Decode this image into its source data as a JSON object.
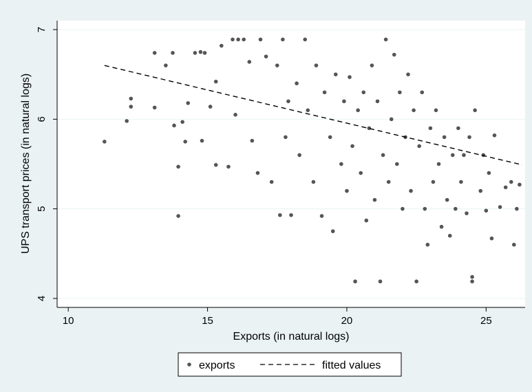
{
  "chart_data": {
    "type": "scatter",
    "xlabel": "Exports (in natural logs)",
    "ylabel": "UPS transport prices (in natural logs)",
    "xlim": [
      9.6,
      26.4
    ],
    "ylim": [
      3.9,
      7.1
    ],
    "xticks": [
      10,
      15,
      20,
      25
    ],
    "yticks": [
      4,
      5,
      6,
      7
    ],
    "grid": "horizontal",
    "legend_position": "bottom",
    "colors": {
      "points": "#555555",
      "line": "#000000",
      "background": "#eaf2f3",
      "plot_bg": "#ffffff",
      "grid": "#eaf2f3"
    },
    "series": [
      {
        "name": "exports",
        "kind": "scatter",
        "points": [
          [
            11.3,
            5.75
          ],
          [
            12.1,
            5.98
          ],
          [
            12.25,
            6.23
          ],
          [
            12.25,
            6.14
          ],
          [
            13.1,
            6.74
          ],
          [
            13.1,
            6.13
          ],
          [
            13.5,
            6.6
          ],
          [
            13.75,
            6.74
          ],
          [
            13.8,
            5.93
          ],
          [
            13.95,
            5.47
          ],
          [
            13.95,
            4.92
          ],
          [
            14.1,
            5.97
          ],
          [
            14.2,
            5.75
          ],
          [
            14.3,
            6.18
          ],
          [
            14.55,
            6.74
          ],
          [
            14.75,
            6.75
          ],
          [
            14.8,
            5.76
          ],
          [
            14.9,
            6.74
          ],
          [
            15.1,
            6.14
          ],
          [
            15.3,
            6.42
          ],
          [
            15.3,
            5.49
          ],
          [
            15.5,
            6.82
          ],
          [
            15.75,
            5.47
          ],
          [
            15.9,
            6.89
          ],
          [
            16.0,
            6.05
          ],
          [
            16.1,
            6.89
          ],
          [
            16.3,
            6.89
          ],
          [
            16.5,
            6.64
          ],
          [
            16.6,
            5.76
          ],
          [
            16.8,
            5.4
          ],
          [
            16.9,
            6.89
          ],
          [
            17.1,
            6.7
          ],
          [
            17.3,
            5.3
          ],
          [
            17.5,
            6.6
          ],
          [
            17.6,
            4.93
          ],
          [
            17.7,
            6.89
          ],
          [
            17.8,
            5.8
          ],
          [
            17.9,
            6.2
          ],
          [
            18.0,
            4.93
          ],
          [
            18.2,
            6.4
          ],
          [
            18.3,
            5.6
          ],
          [
            18.5,
            6.89
          ],
          [
            18.6,
            6.1
          ],
          [
            18.8,
            5.3
          ],
          [
            18.9,
            6.6
          ],
          [
            19.1,
            4.92
          ],
          [
            19.2,
            6.3
          ],
          [
            19.4,
            5.8
          ],
          [
            19.5,
            4.75
          ],
          [
            19.6,
            6.5
          ],
          [
            19.8,
            5.5
          ],
          [
            19.9,
            6.2
          ],
          [
            20.0,
            5.2
          ],
          [
            20.1,
            6.47
          ],
          [
            20.2,
            5.7
          ],
          [
            20.3,
            4.19
          ],
          [
            20.4,
            6.1
          ],
          [
            20.5,
            5.4
          ],
          [
            20.6,
            6.3
          ],
          [
            20.7,
            4.87
          ],
          [
            20.8,
            5.9
          ],
          [
            20.9,
            6.6
          ],
          [
            21.0,
            5.1
          ],
          [
            21.1,
            6.2
          ],
          [
            21.2,
            4.19
          ],
          [
            21.3,
            5.6
          ],
          [
            21.4,
            6.89
          ],
          [
            21.5,
            5.3
          ],
          [
            21.6,
            6.0
          ],
          [
            21.7,
            6.72
          ],
          [
            21.8,
            5.5
          ],
          [
            21.9,
            6.3
          ],
          [
            22.0,
            5.0
          ],
          [
            22.1,
            5.8
          ],
          [
            22.2,
            6.5
          ],
          [
            22.3,
            5.2
          ],
          [
            22.4,
            6.1
          ],
          [
            22.5,
            4.19
          ],
          [
            22.6,
            5.7
          ],
          [
            22.7,
            6.3
          ],
          [
            22.8,
            5.0
          ],
          [
            22.9,
            4.6
          ],
          [
            23.0,
            5.9
          ],
          [
            23.1,
            5.3
          ],
          [
            23.2,
            6.1
          ],
          [
            23.3,
            5.5
          ],
          [
            23.4,
            4.8
          ],
          [
            23.5,
            5.8
          ],
          [
            23.6,
            5.1
          ],
          [
            23.7,
            4.7
          ],
          [
            23.8,
            5.6
          ],
          [
            23.9,
            5.0
          ],
          [
            24.0,
            5.9
          ],
          [
            24.1,
            5.3
          ],
          [
            24.2,
            5.6
          ],
          [
            24.3,
            4.95
          ],
          [
            24.4,
            5.8
          ],
          [
            24.5,
            4.24
          ],
          [
            24.5,
            4.19
          ],
          [
            24.6,
            6.1
          ],
          [
            24.8,
            5.2
          ],
          [
            24.9,
            5.6
          ],
          [
            25.0,
            4.98
          ],
          [
            25.1,
            5.4
          ],
          [
            25.2,
            4.67
          ],
          [
            25.3,
            5.82
          ],
          [
            25.5,
            5.02
          ],
          [
            25.7,
            5.24
          ],
          [
            25.9,
            5.3
          ],
          [
            26.0,
            4.6
          ],
          [
            26.1,
            5.0
          ],
          [
            26.2,
            5.27
          ]
        ]
      },
      {
        "name": "fitted values",
        "kind": "line",
        "style": "dashed",
        "points": [
          [
            11.3,
            6.6
          ],
          [
            26.3,
            5.49
          ]
        ]
      }
    ]
  }
}
